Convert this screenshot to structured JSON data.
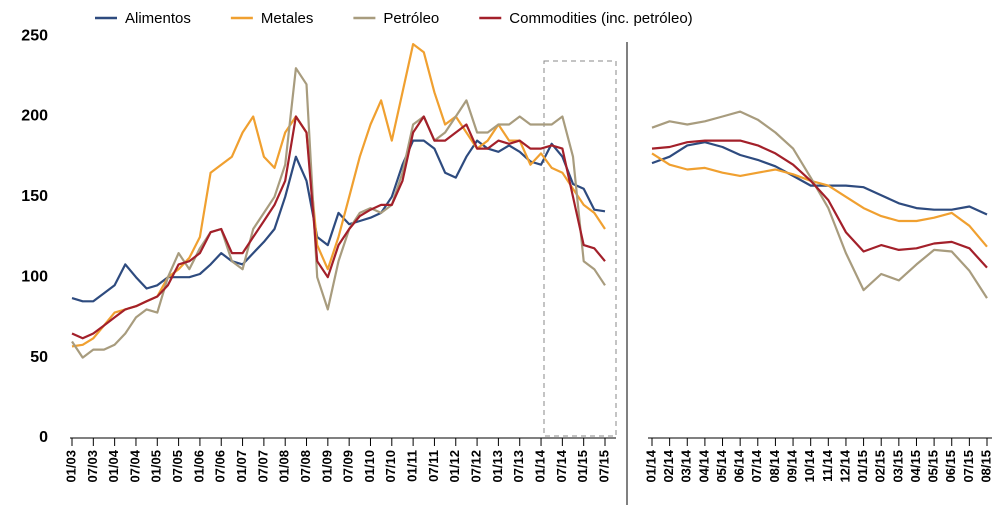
{
  "chart_data": [
    {
      "type": "line",
      "categories": [
        "01/03",
        null,
        "07/03",
        null,
        "01/04",
        null,
        "07/04",
        null,
        "01/05",
        null,
        "07/05",
        null,
        "01/06",
        null,
        "07/06",
        null,
        "01/07",
        null,
        "07/07",
        null,
        "01/08",
        null,
        "07/08",
        null,
        "01/09",
        null,
        "07/09",
        null,
        "01/10",
        null,
        "07/10",
        null,
        "01/11",
        null,
        "07/11",
        null,
        "01/12",
        null,
        "07/12",
        null,
        "01/13",
        null,
        "07/13",
        null,
        "01/14",
        null,
        "07/14",
        null,
        "01/15",
        null,
        "07/15"
      ],
      "series": [
        {
          "name": "Alimentos",
          "color": "#2e4b7f",
          "values": [
            87,
            85,
            85,
            90,
            95,
            108,
            100,
            93,
            95,
            100,
            100,
            100,
            102,
            108,
            115,
            110,
            108,
            115,
            122,
            130,
            150,
            175,
            160,
            125,
            120,
            140,
            133,
            135,
            137,
            140,
            150,
            170,
            185,
            185,
            180,
            165,
            162,
            175,
            185,
            180,
            178,
            182,
            178,
            172,
            170,
            183,
            175,
            158,
            155,
            142,
            141
          ]
        },
        {
          "name": "Metales",
          "color": "#f0a030",
          "values": [
            57,
            58,
            62,
            70,
            78,
            80,
            82,
            85,
            88,
            100,
            105,
            112,
            125,
            165,
            170,
            175,
            190,
            200,
            175,
            168,
            190,
            200,
            190,
            120,
            105,
            125,
            150,
            175,
            195,
            210,
            185,
            215,
            245,
            240,
            215,
            195,
            200,
            190,
            180,
            185,
            195,
            185,
            185,
            170,
            177,
            168,
            165,
            155,
            145,
            140,
            130
          ]
        },
        {
          "name": "Petróleo",
          "color": "#a89c7e",
          "values": [
            60,
            50,
            55,
            55,
            58,
            65,
            75,
            80,
            78,
            100,
            115,
            105,
            118,
            128,
            130,
            110,
            105,
            130,
            140,
            150,
            170,
            230,
            220,
            100,
            80,
            110,
            130,
            140,
            143,
            140,
            145,
            165,
            195,
            200,
            185,
            190,
            200,
            210,
            190,
            190,
            195,
            195,
            200,
            195,
            195,
            195,
            200,
            175,
            110,
            105,
            95
          ]
        },
        {
          "name": "Commodities (inc. petróleo)",
          "color": "#a3202a",
          "values": [
            65,
            62,
            65,
            70,
            75,
            80,
            82,
            85,
            88,
            95,
            108,
            110,
            115,
            128,
            130,
            115,
            115,
            125,
            135,
            145,
            160,
            200,
            190,
            110,
            100,
            120,
            130,
            138,
            142,
            145,
            145,
            160,
            190,
            200,
            185,
            185,
            190,
            195,
            180,
            180,
            185,
            183,
            185,
            180,
            180,
            182,
            180,
            150,
            120,
            118,
            110
          ]
        }
      ],
      "ylim": [
        0,
        260
      ],
      "yticks": [
        0,
        50,
        100,
        150,
        200,
        250
      ]
    },
    {
      "type": "line",
      "categories": [
        "01/14",
        "02/14",
        "03/14",
        "04/14",
        "05/14",
        "06/14",
        "07/14",
        "08/14",
        "09/14",
        "10/14",
        "11/14",
        "12/14",
        "01/15",
        "02/15",
        "03/15",
        "04/15",
        "05/15",
        "06/15",
        "07/15",
        "08/15"
      ],
      "series": [
        {
          "color": "#2e4b7f",
          "values": [
            171,
            175,
            182,
            184,
            181,
            176,
            173,
            169,
            163,
            157,
            157,
            157,
            156,
            151,
            146,
            143,
            142,
            142,
            144,
            139
          ]
        },
        {
          "color": "#f0a030",
          "values": [
            177,
            170,
            167,
            168,
            165,
            163,
            165,
            167,
            164,
            160,
            157,
            150,
            143,
            138,
            135,
            135,
            137,
            140,
            132,
            119
          ]
        },
        {
          "color": "#a89c7e",
          "values": [
            193,
            197,
            195,
            197,
            200,
            203,
            198,
            190,
            180,
            162,
            143,
            115,
            92,
            102,
            98,
            108,
            117,
            116,
            104,
            87
          ]
        },
        {
          "color": "#a3202a",
          "values": [
            180,
            181,
            184,
            185,
            185,
            185,
            182,
            177,
            170,
            160,
            148,
            128,
            116,
            120,
            117,
            118,
            121,
            122,
            118,
            106
          ]
        }
      ],
      "ylim": [
        0,
        260
      ]
    }
  ]
}
